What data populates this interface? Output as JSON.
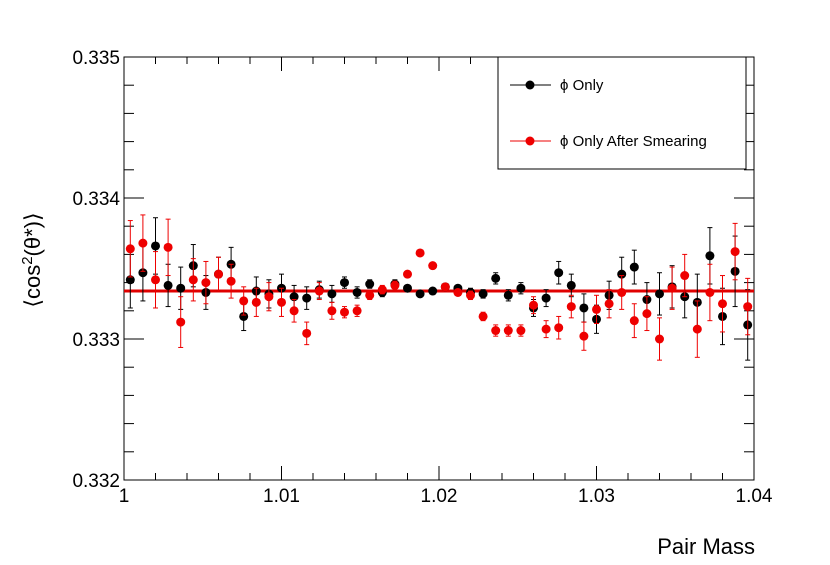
{
  "chart_data": {
    "type": "scatter",
    "title": "",
    "xlabel": "Pair Mass",
    "ylabel_parts": {
      "pre": "⟨cos",
      "sup": "2",
      "post": "(θ*)⟩"
    },
    "xlim": [
      1.0,
      1.04
    ],
    "ylim": [
      0.332,
      0.335
    ],
    "x_ticks": [
      {
        "value": 1.0,
        "label": "1"
      },
      {
        "value": 1.01,
        "label": "1.01"
      },
      {
        "value": 1.02,
        "label": "1.02"
      },
      {
        "value": 1.03,
        "label": "1.03"
      },
      {
        "value": 1.04,
        "label": "1.04"
      }
    ],
    "y_ticks": [
      {
        "value": 0.332,
        "label": "0.332"
      },
      {
        "value": 0.333,
        "label": "0.333"
      },
      {
        "value": 0.334,
        "label": "0.334"
      },
      {
        "value": 0.335,
        "label": "0.335"
      }
    ],
    "grid": false,
    "legend_position": "top-right",
    "fit_line": {
      "y": 0.33334,
      "color": "#e00000"
    },
    "series": [
      {
        "name": "ϕ  Only",
        "color": "#000000",
        "x": [
          1.0004,
          1.0012,
          1.002,
          1.0028,
          1.0036,
          1.0044,
          1.0052,
          1.006,
          1.0068,
          1.0076,
          1.0084,
          1.0092,
          1.01,
          1.0108,
          1.0116,
          1.0124,
          1.0132,
          1.014,
          1.0148,
          1.0156,
          1.0164,
          1.0172,
          1.018,
          1.0188,
          1.0196,
          1.0204,
          1.0212,
          1.022,
          1.0228,
          1.0236,
          1.0244,
          1.0252,
          1.026,
          1.0268,
          1.0276,
          1.0284,
          1.0292,
          1.03,
          1.0308,
          1.0316,
          1.0324,
          1.0332,
          1.034,
          1.0348,
          1.0356,
          1.0364,
          1.0372,
          1.038,
          1.0388,
          1.0396
        ],
        "y": [
          0.33342,
          0.33347,
          0.33366,
          0.33338,
          0.33336,
          0.33352,
          0.33333,
          0.33346,
          0.33353,
          0.33316,
          0.33334,
          0.33332,
          0.33336,
          0.3333,
          0.33329,
          0.33335,
          0.33332,
          0.3334,
          0.33333,
          0.33339,
          0.33333,
          0.33339,
          0.33336,
          0.33332,
          0.33334,
          0.33337,
          0.33336,
          0.33333,
          0.33332,
          0.33343,
          0.33331,
          0.33336,
          0.33322,
          0.33329,
          0.33347,
          0.33338,
          0.33322,
          0.33314,
          0.33331,
          0.33346,
          0.33351,
          0.33328,
          0.33332,
          0.33337,
          0.3333,
          0.33326,
          0.33359,
          0.33316,
          0.33348,
          0.3331
        ],
        "err": [
          0.0002,
          0.0002,
          0.0002,
          0.00015,
          0.00015,
          0.00015,
          0.00012,
          0.00012,
          0.00012,
          0.0001,
          0.0001,
          0.0001,
          0.0001,
          8e-05,
          8e-05,
          6e-05,
          6e-05,
          4e-05,
          4e-05,
          3e-05,
          3e-05,
          3e-05,
          2e-05,
          2e-05,
          2e-05,
          2e-05,
          2e-05,
          3e-05,
          3e-05,
          4e-05,
          4e-05,
          4e-05,
          6e-05,
          6e-05,
          8e-05,
          8e-05,
          0.0001,
          0.0001,
          0.0001,
          0.00012,
          0.00012,
          0.00012,
          0.00015,
          0.00015,
          0.00015,
          0.0002,
          0.0002,
          0.0002,
          0.00025,
          0.00025
        ]
      },
      {
        "name": "ϕ Only After Smearing",
        "color": "#ee0000",
        "x": [
          1.0004,
          1.0012,
          1.002,
          1.0028,
          1.0036,
          1.0044,
          1.0052,
          1.006,
          1.0068,
          1.0076,
          1.0084,
          1.0092,
          1.01,
          1.0108,
          1.0116,
          1.0124,
          1.0132,
          1.014,
          1.0148,
          1.0156,
          1.0164,
          1.0172,
          1.018,
          1.0188,
          1.0196,
          1.0204,
          1.0212,
          1.022,
          1.0228,
          1.0236,
          1.0244,
          1.0252,
          1.026,
          1.0268,
          1.0276,
          1.0284,
          1.0292,
          1.03,
          1.0308,
          1.0316,
          1.0324,
          1.0332,
          1.034,
          1.0348,
          1.0356,
          1.0364,
          1.0372,
          1.038,
          1.0388,
          1.0396
        ],
        "y": [
          0.33364,
          0.33368,
          0.33342,
          0.33365,
          0.33312,
          0.33342,
          0.3334,
          0.33346,
          0.33341,
          0.33327,
          0.33326,
          0.3333,
          0.33326,
          0.3332,
          0.33304,
          0.33334,
          0.3332,
          0.33319,
          0.3332,
          0.33331,
          0.33335,
          0.33338,
          0.33346,
          0.33361,
          0.33352,
          0.33337,
          0.33333,
          0.33331,
          0.33316,
          0.33306,
          0.33306,
          0.33306,
          0.33324,
          0.33307,
          0.33308,
          0.33323,
          0.33302,
          0.33321,
          0.33325,
          0.33333,
          0.33313,
          0.33318,
          0.333,
          0.33336,
          0.33345,
          0.33307,
          0.33333,
          0.33325,
          0.33362,
          0.33323
        ],
        "err": [
          0.0002,
          0.0002,
          0.0002,
          0.0002,
          0.00018,
          0.00015,
          0.00015,
          0.00012,
          0.00012,
          0.0001,
          0.0001,
          0.0001,
          0.0001,
          8e-05,
          8e-05,
          6e-05,
          6e-05,
          4e-05,
          4e-05,
          3e-05,
          3e-05,
          3e-05,
          2e-05,
          2e-05,
          2e-05,
          2e-05,
          2e-05,
          3e-05,
          3e-05,
          4e-05,
          4e-05,
          4e-05,
          6e-05,
          6e-05,
          8e-05,
          8e-05,
          0.0001,
          0.0001,
          0.0001,
          0.00012,
          0.00012,
          0.00012,
          0.00015,
          0.00015,
          0.00015,
          0.0002,
          0.0002,
          0.0002,
          0.0002,
          0.0002
        ]
      }
    ]
  }
}
